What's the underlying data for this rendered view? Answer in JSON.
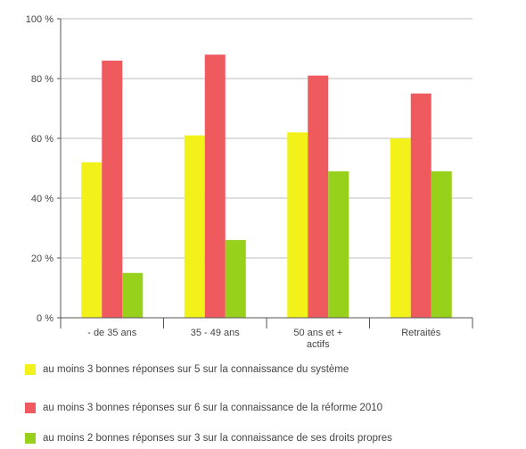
{
  "chart_data": {
    "type": "bar",
    "categories": [
      "- de 35 ans",
      "35 - 49 ans",
      "50 ans et +\nactifs",
      "Retraités"
    ],
    "series": [
      {
        "name": "au moins 3 bonnes réponses sur 5 sur la connaissance du système",
        "color": "#f2f21a",
        "values": [
          52,
          61,
          62,
          60
        ]
      },
      {
        "name": "au moins 3 bonnes réponses sur 6 sur la connaissance de la réforme 2010",
        "color": "#ef5a5f",
        "values": [
          86,
          88,
          81,
          75
        ]
      },
      {
        "name": "au moins 2 bonnes réponses sur 3 sur la connaissance de ses droits propres",
        "color": "#97d11b",
        "values": [
          15,
          26,
          49,
          49
        ]
      }
    ],
    "yticks": [
      "0 %",
      "20 %",
      "40 %",
      "60 %",
      "80 %",
      "100 %"
    ],
    "ylim": [
      0,
      100
    ],
    "title": "",
    "xlabel": "",
    "ylabel": "",
    "grid": true,
    "legend": "bottom"
  }
}
